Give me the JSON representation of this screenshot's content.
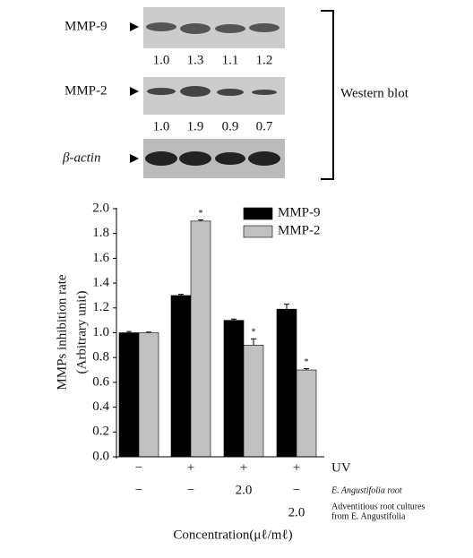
{
  "blot": {
    "label": "Western blot",
    "rows": [
      {
        "name": "MMP-9",
        "ratios": [
          "1.0",
          "1.3",
          "1.1",
          "1.2"
        ]
      },
      {
        "name": "MMP-2",
        "ratios": [
          "1.0",
          "1.9",
          "0.9",
          "0.7"
        ]
      },
      {
        "name": "β-actin"
      }
    ]
  },
  "chart_data": {
    "type": "bar",
    "ylabel": [
      "MMPs inhibition rate",
      "(Arbitrary unit)"
    ],
    "xlabel": "Concentration(μℓ/mℓ)",
    "categories": [
      null,
      null,
      null,
      null
    ],
    "treatments": [
      {
        "label": "UV",
        "values": [
          "−",
          "+",
          "+",
          "+"
        ]
      },
      {
        "label": "E. Angustifolia root",
        "values": [
          "−",
          "−",
          "2.0",
          "−"
        ]
      },
      {
        "label": [
          "Adventitious root cultures",
          "from E. Angustifolia"
        ],
        "values": [
          null,
          null,
          null,
          "2.0"
        ]
      }
    ],
    "series": [
      {
        "name": "MMP-9",
        "color": "#000000",
        "values": [
          1.0,
          1.3,
          1.1,
          1.19
        ],
        "errors": [
          0.01,
          0.01,
          0.01,
          0.04
        ]
      },
      {
        "name": "MMP-2",
        "color": "#c0c0c0",
        "values": [
          1.0,
          1.9,
          0.9,
          0.7
        ],
        "errors": [
          0.005,
          0.01,
          0.05,
          0.01
        ],
        "marks": [
          null,
          "*",
          "*",
          "*"
        ]
      }
    ],
    "ylim": [
      0,
      2.0
    ],
    "yticks": [
      {
        "value": 0,
        "label": "0.0"
      },
      0.2,
      0.4,
      0.6,
      0.8,
      {
        "value": 1.0,
        "label": "1.0"
      },
      1.2,
      1.4,
      1.6,
      1.8,
      {
        "value": 2.0,
        "label": "2.0"
      }
    ],
    "legend": "top-right"
  }
}
